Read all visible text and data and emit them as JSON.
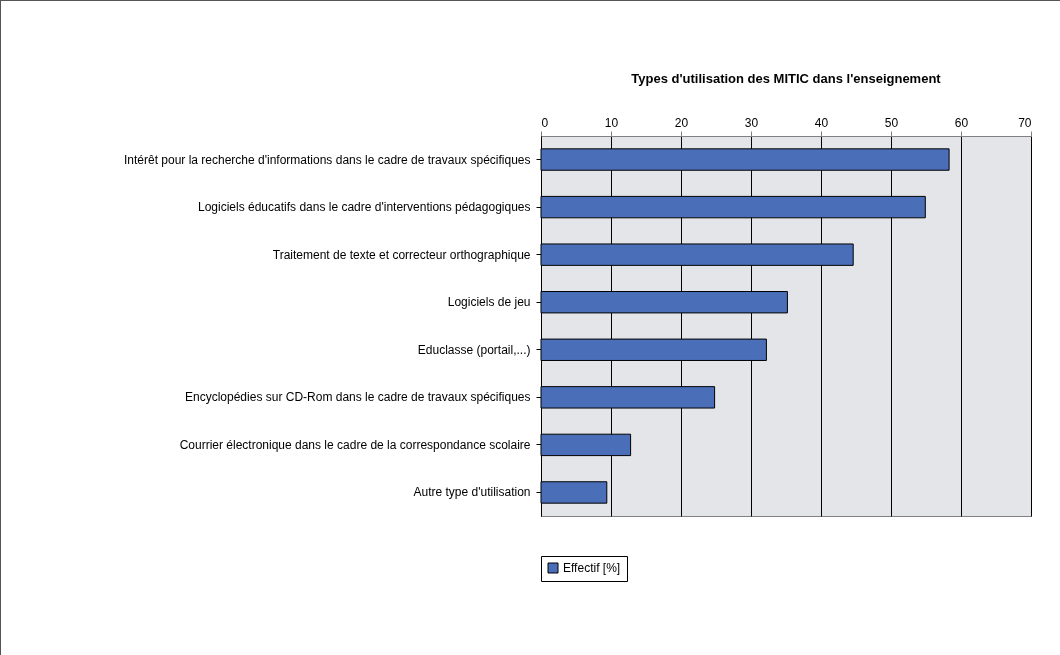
{
  "chart_data": {
    "type": "bar",
    "orientation": "horizontal",
    "title": "Types d'utilisation des MITIC dans l'enseignement",
    "categories": [
      "Intérêt pour la recherche d'informations dans le cadre de travaux spécifiques",
      "Logiciels éducatifs dans le cadre d'interventions pédagogiques",
      "Traitement de texte et correcteur orthographique",
      "Logiciels de jeu",
      "Educlasse (portail,...)",
      "Encyclopédies sur CD-Rom dans le cadre de travaux spécifiques",
      "Courrier électronique dans le cadre de la correspondance scolaire",
      "Autre type d'utilisation"
    ],
    "series": [
      {
        "name": "Effectif [%]",
        "color": "#4a6fb8",
        "values": [
          58.3,
          54.9,
          44.6,
          35.2,
          32.2,
          24.8,
          12.8,
          9.4
        ]
      }
    ],
    "xlim": [
      0,
      70
    ],
    "xticks": [
      0,
      10,
      20,
      30,
      40,
      50,
      60,
      70
    ],
    "grid": "x",
    "legend": "bottom"
  }
}
